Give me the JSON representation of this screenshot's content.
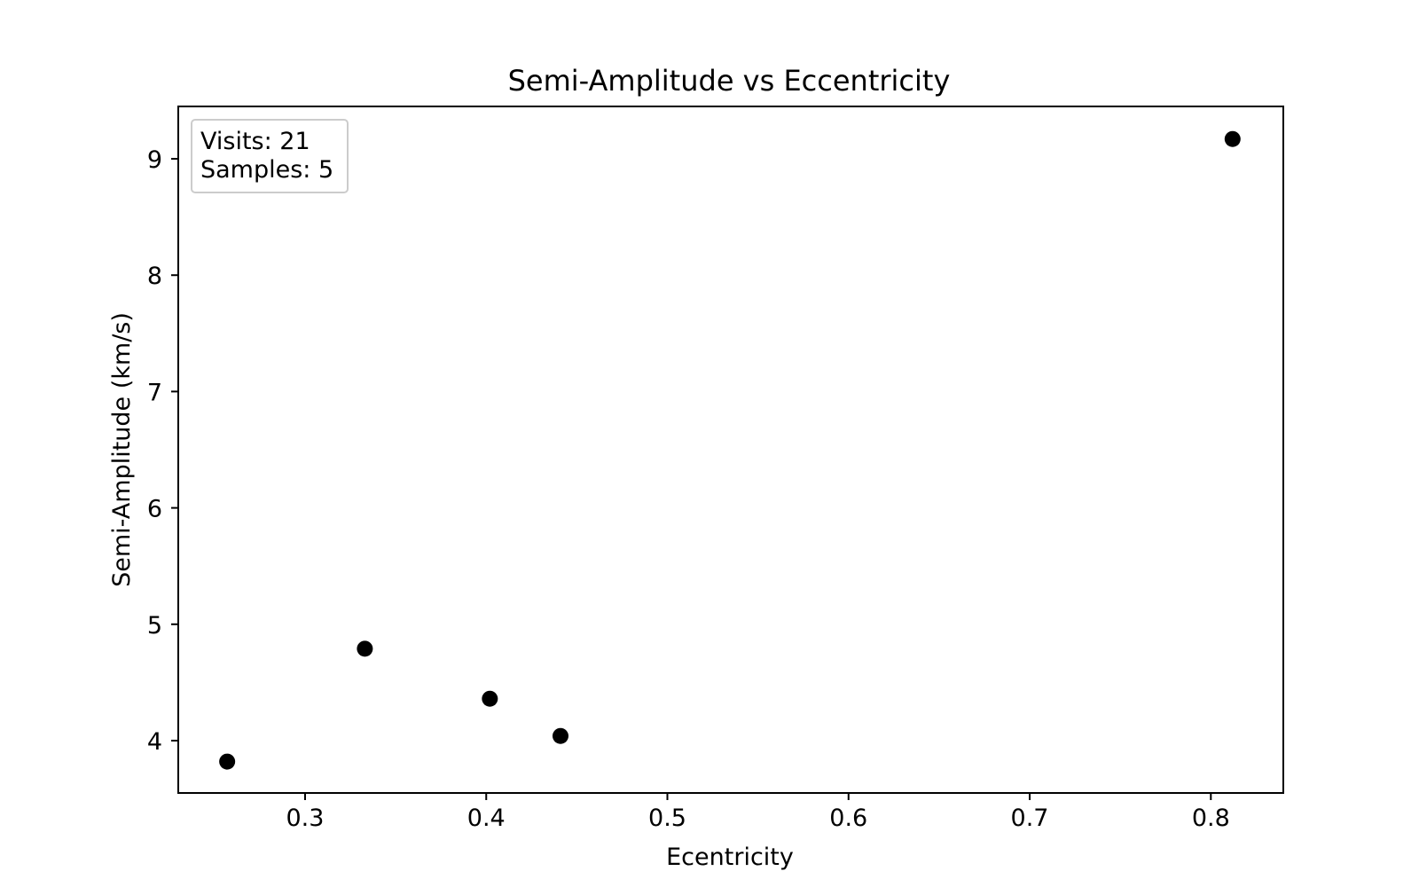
{
  "chart_data": {
    "type": "scatter",
    "title": "Semi-Amplitude vs Eccentricity",
    "xlabel": "Ecentricity",
    "ylabel": "Semi-Amplitude (km/s)",
    "xlim": [
      0.23,
      0.84
    ],
    "ylim": [
      3.55,
      9.45
    ],
    "xticks": [
      0.3,
      0.4,
      0.5,
      0.6,
      0.7,
      0.8
    ],
    "xtick_labels": [
      "0.3",
      "0.4",
      "0.5",
      "0.6",
      "0.7",
      "0.8"
    ],
    "yticks": [
      4,
      5,
      6,
      7,
      8,
      9
    ],
    "ytick_labels": [
      "4",
      "5",
      "6",
      "7",
      "8",
      "9"
    ],
    "grid": false,
    "marker_color": "#000000",
    "points": [
      {
        "x": 0.257,
        "y": 3.82
      },
      {
        "x": 0.333,
        "y": 4.79
      },
      {
        "x": 0.402,
        "y": 4.36
      },
      {
        "x": 0.441,
        "y": 4.04
      },
      {
        "x": 0.812,
        "y": 9.17
      }
    ],
    "annotation": {
      "placement": "top-left",
      "lines": [
        "Visits: 21",
        "Samples: 5"
      ]
    }
  }
}
